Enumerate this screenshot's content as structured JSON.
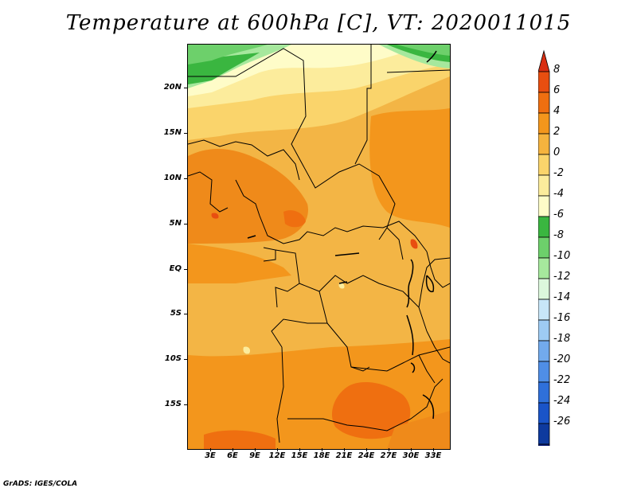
{
  "title": "Temperature at 600hPa [C], VT: 2020011015",
  "credit": "GrADS: IGES/COLA",
  "lat_labels": [
    "20N",
    "15N",
    "10N",
    "5N",
    "EQ",
    "5S",
    "10S",
    "15S"
  ],
  "lon_labels": [
    "3E",
    "6E",
    "9E",
    "12E",
    "15E",
    "18E",
    "21E",
    "24E",
    "27E",
    "30E",
    "33E"
  ],
  "colorbar": {
    "labels": [
      "8",
      "6",
      "4",
      "2",
      "0",
      "-2",
      "-4",
      "-6",
      "-8",
      "-10",
      "-12",
      "-14",
      "-16",
      "-18",
      "-20",
      "-22",
      "-24",
      "-26"
    ],
    "colors": [
      "#d92e12",
      "#e84e10",
      "#ef6f10",
      "#f3961c",
      "#f5b33e",
      "#fad46b",
      "#fcec9c",
      "#fefcc8",
      "#3ab640",
      "#6dd06b",
      "#a6e89d",
      "#dcf7dc",
      "#c8e6f8",
      "#9ecbf3",
      "#72aaec",
      "#4f8ee6",
      "#2f70da",
      "#1a54c8",
      "#0e3a9e",
      "#081a78",
      "#e2e3ef"
    ]
  }
}
